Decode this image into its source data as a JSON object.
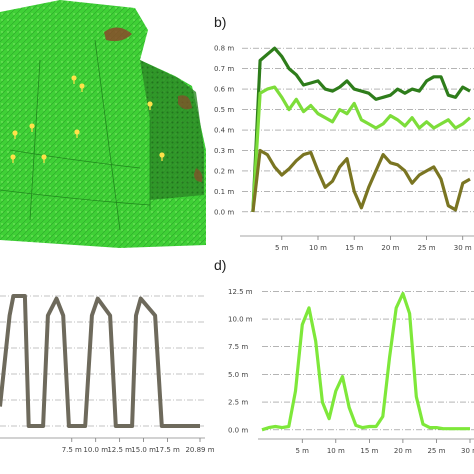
{
  "panels": {
    "b": "b)",
    "d": "d)"
  },
  "map": {
    "colors": {
      "field": "#3fd036",
      "dark": "#1f6a1c",
      "soil": "#8a4a2a",
      "marker": "#ffe24a"
    },
    "marker_icon": "tree-marker-icon"
  },
  "chart_data": [
    {
      "id": "b",
      "type": "line",
      "x_tick_labels": [
        "5 m",
        "10 m",
        "15 m",
        "20 m",
        "25 m",
        "30 m"
      ],
      "x_tick_values": [
        5,
        10,
        15,
        20,
        25,
        30
      ],
      "y_tick_labels": [
        "0.0 m",
        "0.1 m",
        "0.2 m",
        "0.3 m",
        "0.4 m",
        "0.5 m",
        "0.6 m",
        "0.7 m",
        "0.8 m"
      ],
      "y_tick_values": [
        0,
        0.1,
        0.2,
        0.3,
        0.4,
        0.5,
        0.6,
        0.7,
        0.8
      ],
      "xlim": [
        -0.5,
        31
      ],
      "ylim": [
        -0.03,
        0.84
      ],
      "grid": "horizontal dash-dot",
      "series": [
        {
          "color": "#2e7d1b",
          "x": [
            1,
            2,
            3,
            4,
            5,
            6,
            7,
            8,
            9,
            10,
            11,
            12,
            13,
            14,
            15,
            16,
            17,
            18,
            19,
            20,
            21,
            22,
            23,
            24,
            25,
            26,
            27,
            28,
            29,
            30,
            31
          ],
          "y": [
            0.0,
            0.74,
            0.77,
            0.8,
            0.76,
            0.7,
            0.67,
            0.62,
            0.63,
            0.64,
            0.6,
            0.59,
            0.61,
            0.64,
            0.6,
            0.59,
            0.58,
            0.55,
            0.56,
            0.57,
            0.6,
            0.58,
            0.6,
            0.59,
            0.64,
            0.66,
            0.66,
            0.57,
            0.56,
            0.61,
            0.59
          ]
        },
        {
          "color": "#7ddd3a",
          "x": [
            1,
            2,
            3,
            4,
            5,
            6,
            7,
            8,
            9,
            10,
            11,
            12,
            13,
            14,
            15,
            16,
            17,
            18,
            19,
            20,
            21,
            22,
            23,
            24,
            25,
            26,
            27,
            28,
            29,
            30,
            31
          ],
          "y": [
            0.0,
            0.58,
            0.6,
            0.61,
            0.56,
            0.5,
            0.55,
            0.49,
            0.52,
            0.48,
            0.46,
            0.44,
            0.5,
            0.48,
            0.53,
            0.45,
            0.43,
            0.41,
            0.43,
            0.47,
            0.45,
            0.42,
            0.46,
            0.41,
            0.44,
            0.41,
            0.43,
            0.45,
            0.41,
            0.43,
            0.46
          ]
        },
        {
          "color": "#7a7522",
          "x": [
            1,
            2,
            3,
            4,
            5,
            6,
            7,
            8,
            9,
            10,
            11,
            12,
            13,
            14,
            15,
            16,
            17,
            18,
            19,
            20,
            21,
            22,
            23,
            24,
            25,
            26,
            27,
            28,
            29,
            30,
            31
          ],
          "y": [
            0.0,
            0.3,
            0.28,
            0.22,
            0.18,
            0.21,
            0.25,
            0.28,
            0.29,
            0.2,
            0.12,
            0.15,
            0.22,
            0.26,
            0.1,
            0.02,
            0.12,
            0.2,
            0.28,
            0.24,
            0.23,
            0.2,
            0.14,
            0.18,
            0.2,
            0.22,
            0.16,
            0.03,
            0.01,
            0.14,
            0.16
          ]
        }
      ]
    },
    {
      "id": "c",
      "type": "line",
      "x_tick_labels": [
        "7.5 m",
        "10.0 m",
        "12.5 m",
        "15.0 m",
        "17.5 m",
        "20.89 m"
      ],
      "x_tick_values": [
        7.5,
        10,
        12.5,
        15,
        17.5,
        20.89
      ],
      "grid": "horizontal dash-dot",
      "series": [
        {
          "color": "#6e6a5c",
          "x": [
            0,
            1,
            1.4,
            2.6,
            3.0,
            4.5,
            5.0,
            5.9,
            6.6,
            7.2,
            7.8,
            8.9,
            9.6,
            10.2,
            11.5,
            12.1,
            12.6,
            13.8,
            14.2,
            14.7,
            16.2,
            16.9,
            17.6,
            18.0,
            19.3,
            20.0,
            20.89
          ],
          "y": [
            0.15,
            0.85,
            1.0,
            1.0,
            0.0,
            0.0,
            0.85,
            0.98,
            0.85,
            0.0,
            0.0,
            0.0,
            0.85,
            0.98,
            0.85,
            0.0,
            0.0,
            0.0,
            0.85,
            0.98,
            0.85,
            0.0,
            0.0,
            0.0,
            0.0,
            0.0,
            0.0
          ]
        }
      ]
    },
    {
      "id": "d",
      "type": "line",
      "x_tick_labels": [
        "5 m",
        "10 m",
        "15 m",
        "20 m",
        "25 m",
        "30 m"
      ],
      "x_tick_values": [
        5,
        10,
        15,
        20,
        25,
        30
      ],
      "y_tick_labels": [
        "0.0 m",
        "2.5 m",
        "5.0 m",
        "7.5 m",
        "10.0 m",
        "12.5 m"
      ],
      "y_tick_values": [
        0,
        2.5,
        5,
        7.5,
        10,
        12.5
      ],
      "xlim": [
        -1,
        30
      ],
      "ylim": [
        -0.2,
        12.8
      ],
      "grid": "horizontal dash-dot",
      "series": [
        {
          "color": "#7ee83a",
          "x": [
            -1,
            0,
            1,
            2,
            3,
            4,
            5,
            6,
            7,
            8,
            9,
            10,
            11,
            12,
            13,
            14,
            15,
            16,
            17,
            18,
            19,
            20,
            21,
            22,
            23,
            24,
            25,
            26,
            27,
            28,
            29,
            30
          ],
          "y": [
            0,
            0.2,
            0.3,
            0.2,
            0.3,
            3.5,
            9.5,
            11.0,
            8.0,
            2.5,
            1.0,
            3.5,
            4.8,
            2.0,
            0.4,
            0.2,
            0.3,
            0.3,
            1.2,
            6.5,
            11.0,
            12.3,
            10.5,
            3.0,
            0.5,
            0.2,
            0.2,
            0.1,
            0.1,
            0.1,
            0.1,
            0.1
          ]
        }
      ]
    }
  ]
}
